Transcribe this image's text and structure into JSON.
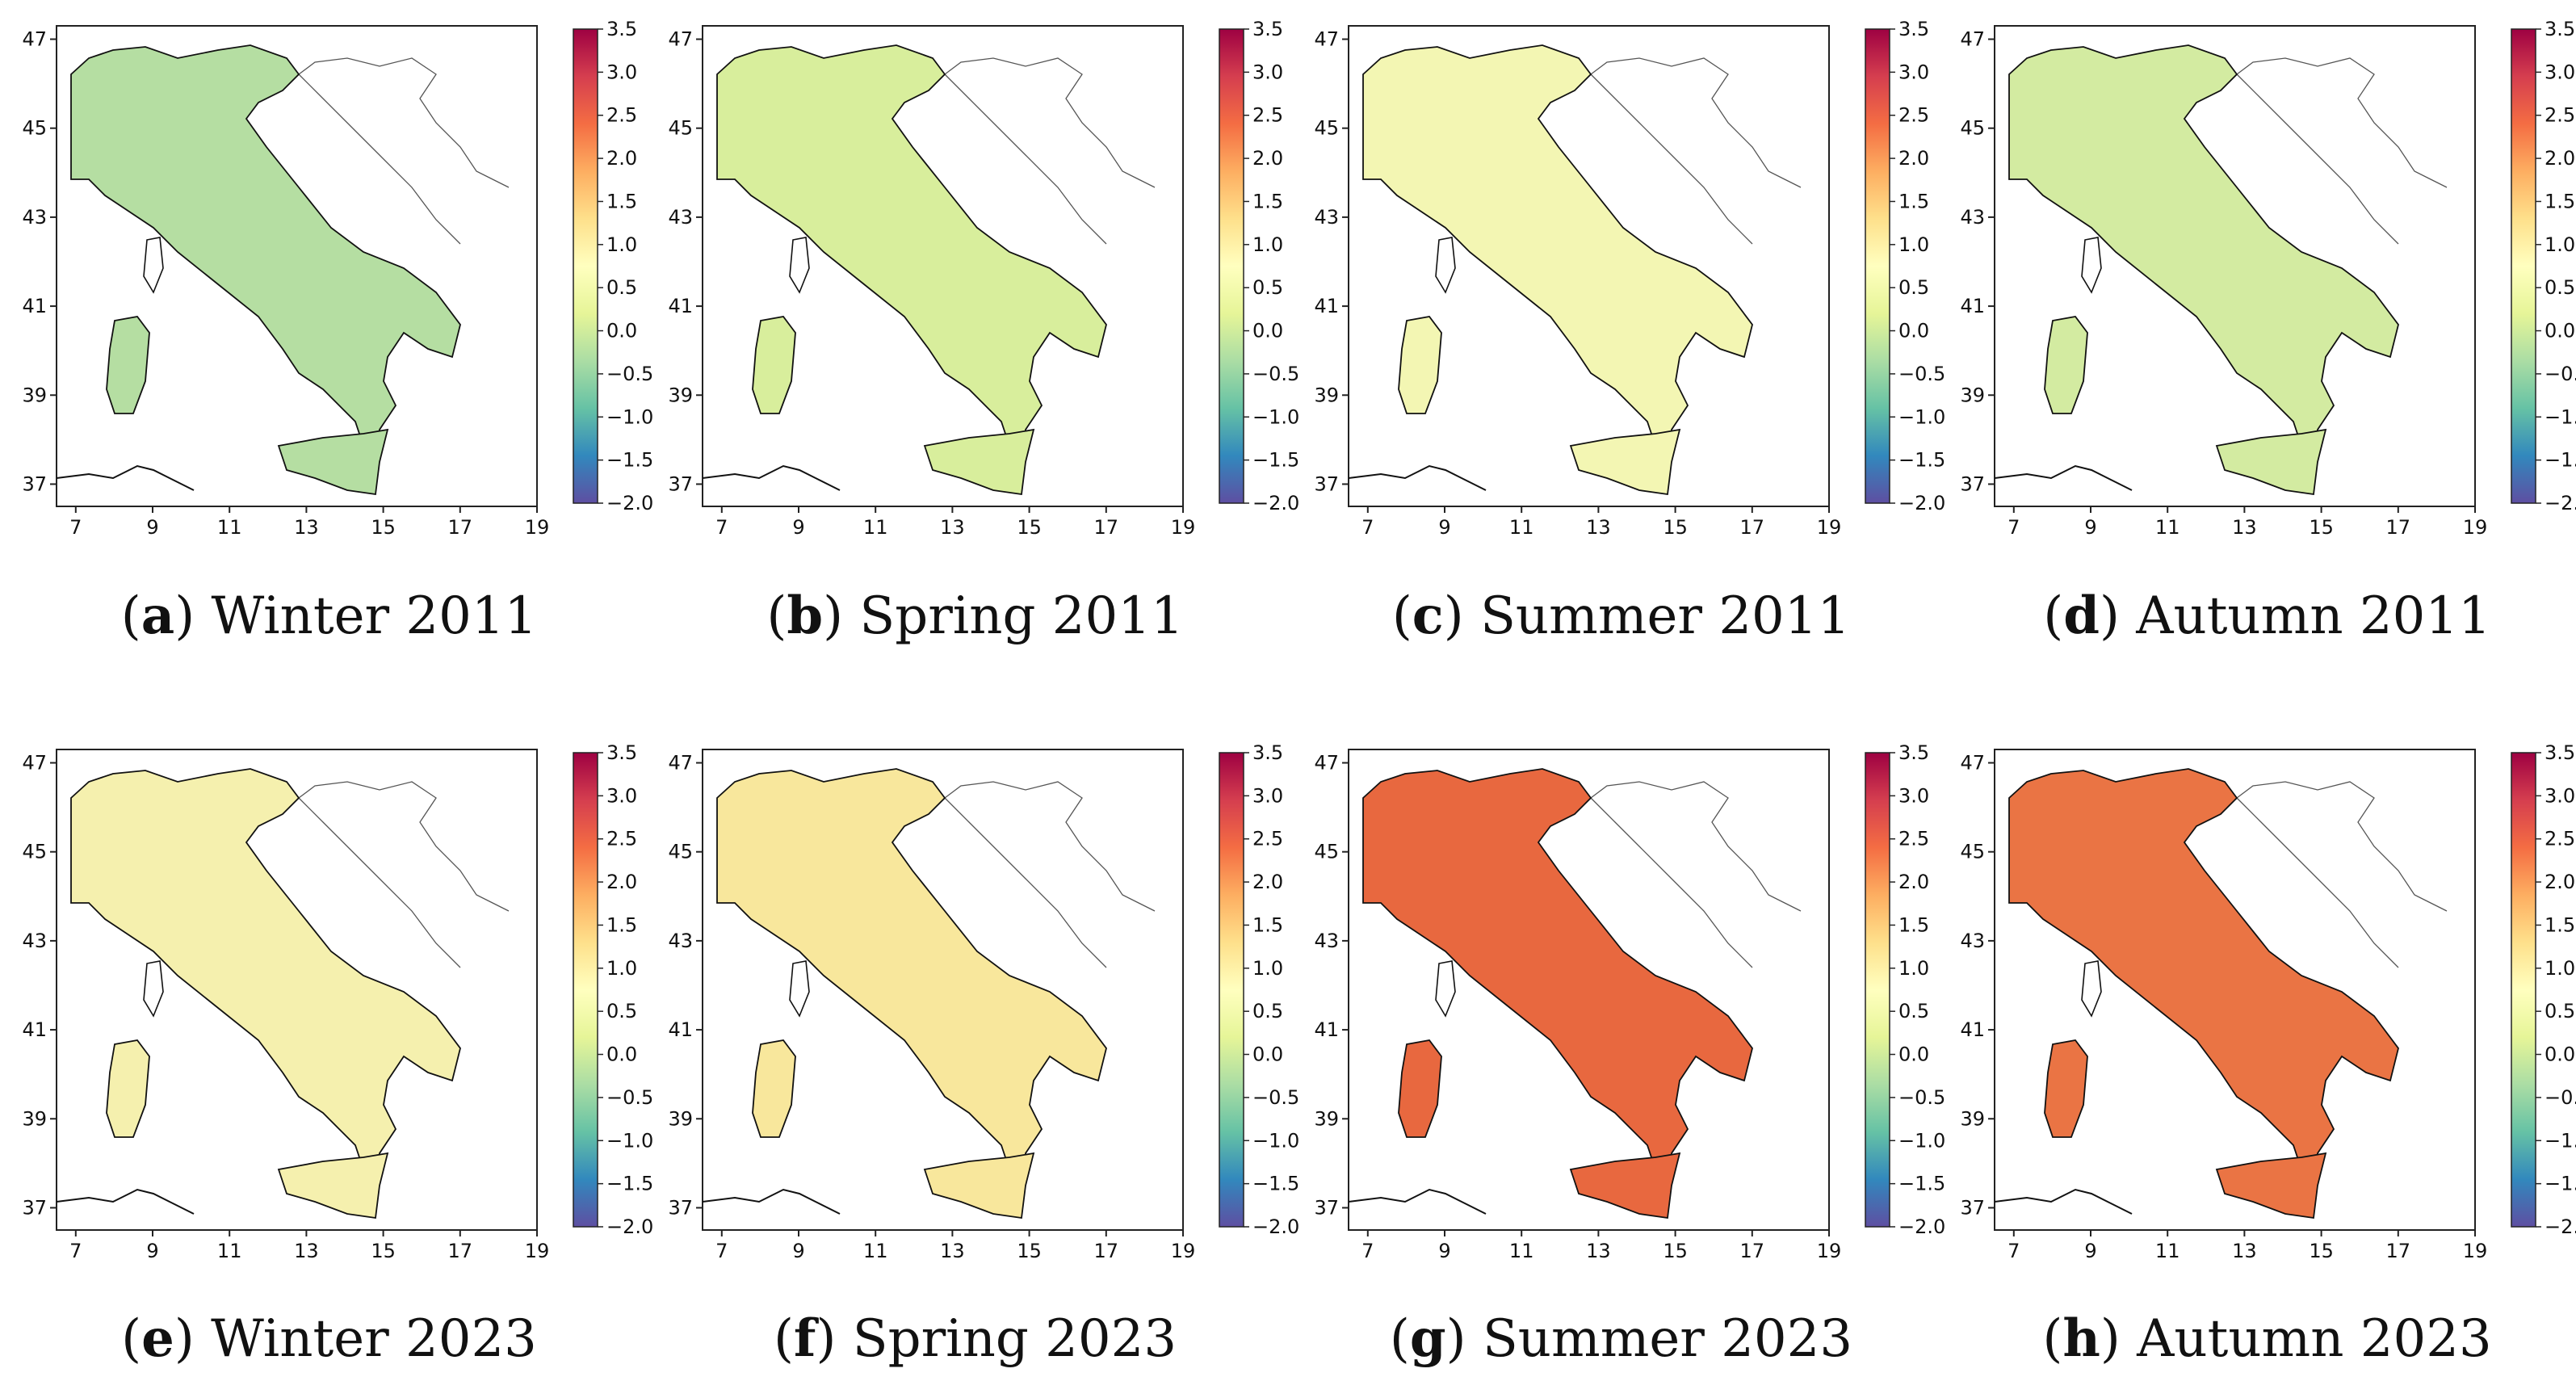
{
  "figure": {
    "x_ticks": [
      "7",
      "9",
      "11",
      "13",
      "15",
      "17",
      "19"
    ],
    "y_ticks": [
      "47",
      "45",
      "43",
      "41",
      "39",
      "37"
    ],
    "colorbar_ticks": [
      "3.5",
      "3.0",
      "2.5",
      "2.0",
      "1.5",
      "1.0",
      "0.5",
      "0.0",
      "−0.5",
      "−1.0",
      "−1.5",
      "−2.0"
    ],
    "colormap": [
      "#5e4fa2",
      "#3288bd",
      "#66c2a5",
      "#abdda4",
      "#e6f598",
      "#ffffbf",
      "#fee08b",
      "#fdae61",
      "#f46d43",
      "#d53e4f",
      "#9e0142"
    ],
    "panels": [
      {
        "letter": "a",
        "label": "Winter 2011",
        "anomaly": -0.35,
        "fill": "#b5dea2"
      },
      {
        "letter": "b",
        "label": "Spring 2011",
        "anomaly": 0.1,
        "fill": "#d8ee9c"
      },
      {
        "letter": "c",
        "label": "Summer 2011",
        "anomaly": 0.9,
        "fill": "#f3f6b3"
      },
      {
        "letter": "d",
        "label": "Autumn 2011",
        "anomaly": 0.3,
        "fill": "#d3eba1"
      },
      {
        "letter": "e",
        "label": "Winter 2023",
        "anomaly": 1.1,
        "fill": "#f5f0ae"
      },
      {
        "letter": "f",
        "label": "Spring 2023",
        "anomaly": 1.3,
        "fill": "#f8e79c"
      },
      {
        "letter": "g",
        "label": "Summer 2023",
        "anomaly": 2.8,
        "fill": "#e8683f"
      },
      {
        "letter": "h",
        "label": "Autumn 2023",
        "anomaly": 2.7,
        "fill": "#ea7444"
      }
    ]
  }
}
